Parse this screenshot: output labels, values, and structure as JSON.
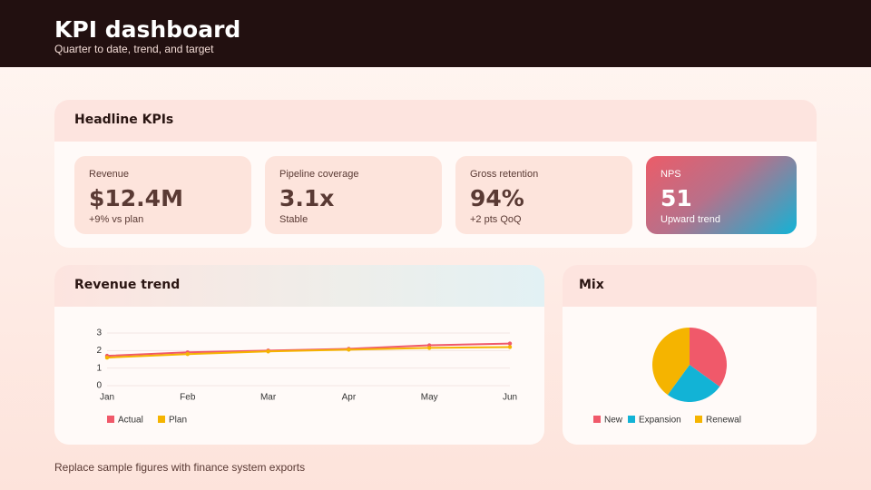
{
  "header": {
    "title": "KPI dashboard",
    "subtitle": "Quarter to date, trend, and target"
  },
  "kpi_panel": {
    "title": "Headline KPIs",
    "cards": [
      {
        "label": "Revenue",
        "value": "$12.4M",
        "note": "+9% vs plan"
      },
      {
        "label": "Pipeline coverage",
        "value": "3.1x",
        "note": "Stable"
      },
      {
        "label": "Gross retention",
        "value": "94%",
        "note": "+2 pts QoQ"
      },
      {
        "label": "NPS",
        "value": "51",
        "note": "Upward trend"
      }
    ]
  },
  "chart_data": [
    {
      "type": "line",
      "title": "Revenue trend",
      "categories": [
        "Jan",
        "Feb",
        "Mar",
        "Apr",
        "May",
        "Jun"
      ],
      "series": [
        {
          "name": "Actual",
          "color": "#f0596a",
          "values": [
            1.7,
            1.9,
            2.0,
            2.1,
            2.3,
            2.4
          ]
        },
        {
          "name": "Plan",
          "color": "#f5b400",
          "values": [
            1.6,
            1.8,
            1.95,
            2.05,
            2.15,
            2.2
          ]
        }
      ],
      "ylim": [
        0,
        3
      ],
      "yticks": [
        0,
        1,
        2,
        3
      ],
      "grid": true
    },
    {
      "type": "pie",
      "title": "Mix",
      "categories": [
        "New",
        "Expansion",
        "Renewal"
      ],
      "values": [
        35,
        25,
        40
      ],
      "colors": [
        "#f0596a",
        "#12b3d6",
        "#f5b400"
      ]
    }
  ],
  "footer": "Replace sample figures with finance system exports"
}
